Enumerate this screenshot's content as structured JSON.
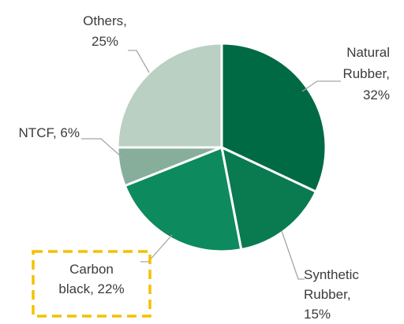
{
  "chart_data": {
    "type": "pie",
    "title": "",
    "slices": [
      {
        "label_lines": [
          "Natural",
          "Rubber,",
          "32%"
        ],
        "value": 32,
        "color": "#006a45"
      },
      {
        "label_lines": [
          "Synthetic",
          "Rubber,",
          "15%"
        ],
        "value": 15,
        "color": "#0a7a50"
      },
      {
        "label_lines": [
          "Carbon",
          "black, 22%"
        ],
        "value": 22,
        "color": "#0e8a5f",
        "highlighted": true
      },
      {
        "label_lines": [
          "NTCF, 6%"
        ],
        "value": 6,
        "color": "#86ae9a"
      },
      {
        "label_lines": [
          "Others,",
          "25%"
        ],
        "value": 25,
        "color": "#b9d0c2"
      }
    ],
    "start_angle_deg": 0,
    "direction": "clockwise",
    "highlight_color": "#f5c000"
  }
}
